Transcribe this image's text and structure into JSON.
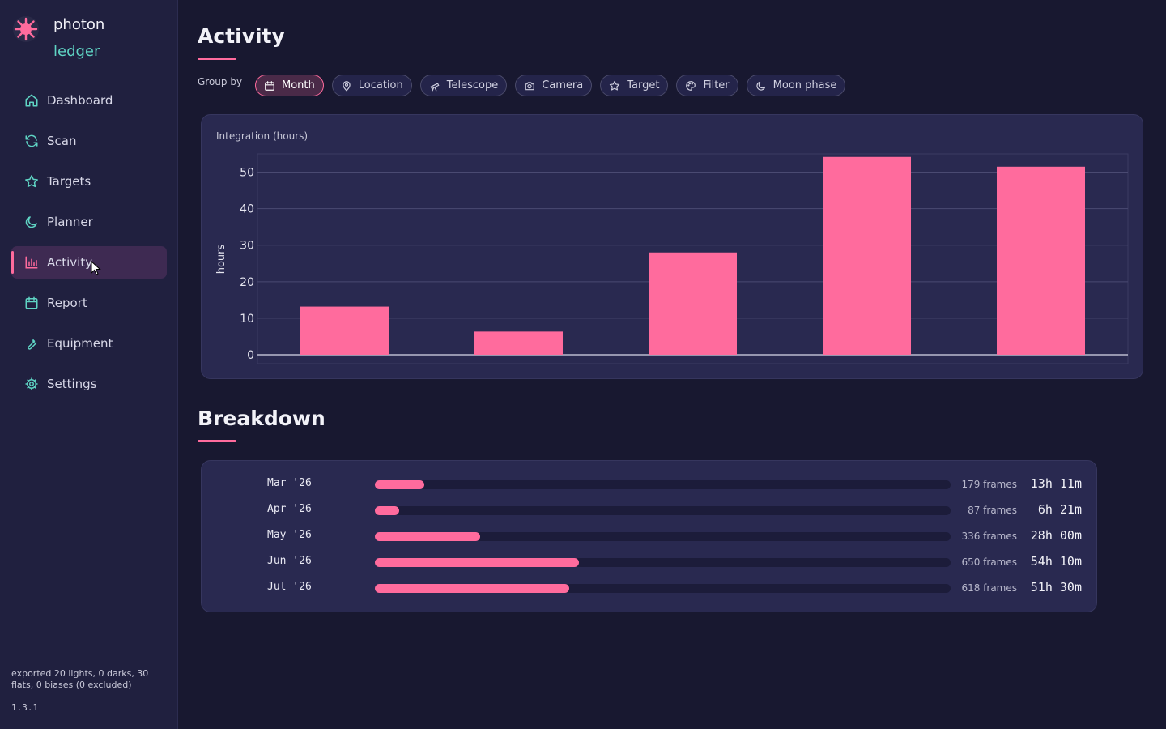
{
  "app": {
    "name_line1": "photon",
    "name_line2": "ledger"
  },
  "sidebar": {
    "items": [
      {
        "label": "Dashboard",
        "icon": "home-icon"
      },
      {
        "label": "Scan",
        "icon": "refresh-icon"
      },
      {
        "label": "Targets",
        "icon": "star-icon"
      },
      {
        "label": "Planner",
        "icon": "moon-icon"
      },
      {
        "label": "Activity",
        "icon": "bar-chart-icon",
        "active": true
      },
      {
        "label": "Report",
        "icon": "calendar-icon"
      },
      {
        "label": "Equipment",
        "icon": "wrench-icon"
      },
      {
        "label": "Settings",
        "icon": "gear-icon"
      }
    ],
    "status": "exported 20 lights, 0 darks, 30 flats, 0 biases (0 excluded)",
    "version": "1.3.1"
  },
  "page": {
    "title": "Activity",
    "group_by_label": "Group by",
    "chips": [
      {
        "label": "Month",
        "icon": "calendar-icon",
        "active": true
      },
      {
        "label": "Location",
        "icon": "pin-icon"
      },
      {
        "label": "Telescope",
        "icon": "telescope-icon"
      },
      {
        "label": "Camera",
        "icon": "camera-icon"
      },
      {
        "label": "Target",
        "icon": "star-icon"
      },
      {
        "label": "Filter",
        "icon": "palette-icon"
      },
      {
        "label": "Moon phase",
        "icon": "moon-icon"
      }
    ],
    "chart_title": "Integration (hours)",
    "breakdown_title": "Breakdown"
  },
  "chart_data": {
    "type": "bar",
    "title": "Integration (hours)",
    "xlabel": "",
    "ylabel": "hours",
    "categories": [
      "Mar '26",
      "Apr '26",
      "May '26",
      "Jun '26",
      "Jul '26"
    ],
    "values": [
      13.18,
      6.35,
      28.0,
      54.17,
      51.5
    ],
    "yticks": [
      0,
      10,
      20,
      30,
      40,
      50
    ],
    "ylim": [
      0,
      57
    ],
    "grid": true,
    "color": "#ff6b9d"
  },
  "breakdown": {
    "rows": [
      {
        "label": "Mar '26",
        "frames": "179 frames",
        "time": "13h 11m",
        "fraction": 0.086
      },
      {
        "label": "Apr '26",
        "frames": "87 frames",
        "time": "6h 21m",
        "fraction": 0.042
      },
      {
        "label": "May '26",
        "frames": "336 frames",
        "time": "28h 00m",
        "fraction": 0.183
      },
      {
        "label": "Jun '26",
        "frames": "650 frames",
        "time": "54h 10m",
        "fraction": 0.354
      },
      {
        "label": "Jul '26",
        "frames": "618 frames",
        "time": "51h 30m",
        "fraction": 0.337
      }
    ]
  },
  "colors": {
    "accent": "#ff6b9d",
    "teal": "#5fd4c4",
    "background": "#181830",
    "sidebar": "#20203f",
    "card": "#292950"
  }
}
